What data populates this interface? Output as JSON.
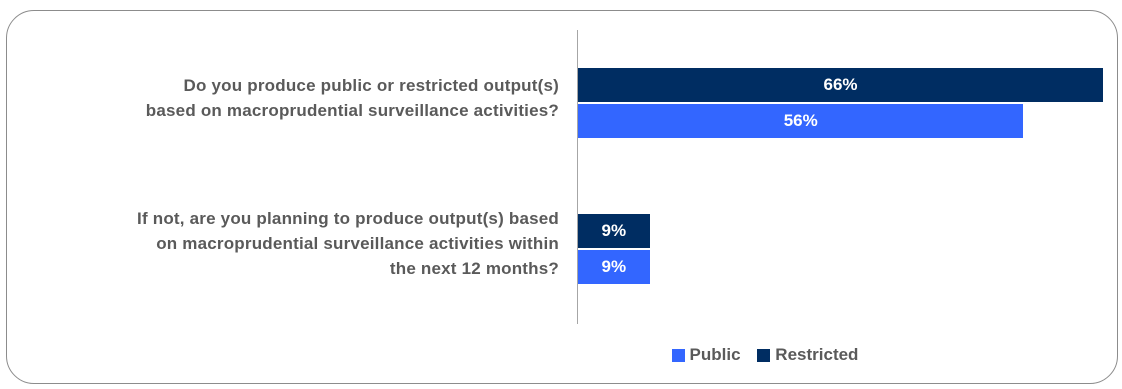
{
  "chart_data": {
    "type": "bar",
    "orientation": "horizontal",
    "categories": [
      [
        "Do you produce public or restricted output(s)",
        "based on macroprudential surveillance activities?"
      ],
      [
        "If not, are you planning to produce output(s) based",
        "on macroprudential surveillance activities within",
        "the next 12 months?"
      ]
    ],
    "series": [
      {
        "name": "Restricted",
        "color": "#002D62",
        "values": [
          66,
          9
        ],
        "labels": [
          "66%",
          "9%"
        ]
      },
      {
        "name": "Public",
        "color": "#3366FF",
        "values": [
          56,
          9
        ],
        "labels": [
          "56%",
          "9%"
        ]
      }
    ],
    "xlim": [
      0,
      100
    ],
    "legend": {
      "position": "bottom",
      "order": [
        "Public",
        "Restricted"
      ]
    },
    "grid": false
  }
}
